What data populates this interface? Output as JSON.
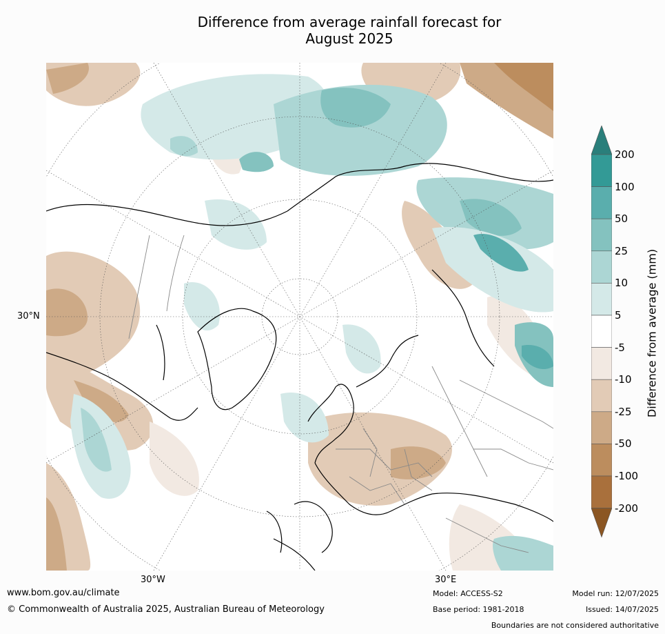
{
  "title_line1": "Difference from average rainfall forecast for",
  "title_line2": "August 2025",
  "map": {
    "lat_label": "30°N",
    "lon_labels": [
      "30°W",
      "30°E"
    ]
  },
  "legend": {
    "title": "Difference from average (mm)",
    "ticks": [
      "200",
      "100",
      "50",
      "25",
      "10",
      "5",
      "-5",
      "-10",
      "-25",
      "-50",
      "-100",
      "-200"
    ],
    "colors": [
      "#2a7f7b",
      "#339a96",
      "#5aaead",
      "#84c2bf",
      "#acd6d4",
      "#d4e9e8",
      "#ffffff",
      "#f2e9e2",
      "#e2cbb6",
      "#cdaa87",
      "#bc8d5e",
      "#a9703c",
      "#8b5623"
    ]
  },
  "footer": {
    "website": "www.bom.gov.au/climate",
    "copyright": "© Commonwealth of Australia 2025, Australian Bureau of Meteorology",
    "model": "Model: ACCESS-S2",
    "base_period": "Base period: 1981-2018",
    "model_run": "Model run: 12/07/2025",
    "issued": "Issued: 14/07/2025",
    "disclaimer": "Boundaries are not considered authoritative"
  }
}
